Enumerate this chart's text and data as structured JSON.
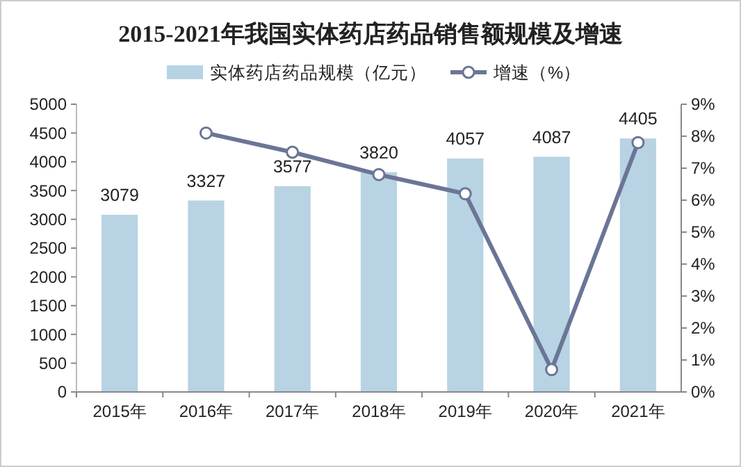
{
  "chart_data": {
    "type": "bar",
    "title": "2015-2021年我国实体药店药品销售额规模及增速",
    "categories": [
      "2015年",
      "2016年",
      "2017年",
      "2018年",
      "2019年",
      "2020年",
      "2021年"
    ],
    "series": [
      {
        "name": "实体药店药品规模（亿元）",
        "color": "#b8d3e3",
        "values": [
          3079,
          3327,
          3577,
          3820,
          4057,
          4087,
          4405
        ],
        "value_labels": [
          "3079",
          "3327",
          "3577",
          "3820",
          "4057",
          "4087",
          "4405"
        ]
      },
      {
        "name": "增速（%）",
        "type": "line",
        "axis": "y2",
        "color": "#6b7596",
        "marker": "circle",
        "values": [
          null,
          8.1,
          7.5,
          6.8,
          6.2,
          0.7,
          7.8
        ]
      }
    ],
    "ylim": [
      0,
      5000
    ],
    "yticks": [
      0,
      500,
      1000,
      1500,
      2000,
      2500,
      3000,
      3500,
      4000,
      4500,
      5000
    ],
    "y2lim": [
      0,
      9
    ],
    "y2ticks": [
      {
        "value": 0,
        "label": "0%"
      },
      {
        "value": 1,
        "label": "1%"
      },
      {
        "value": 2,
        "label": "2%"
      },
      {
        "value": 3,
        "label": "3%"
      },
      {
        "value": 4,
        "label": "4%"
      },
      {
        "value": 5,
        "label": "5%"
      },
      {
        "value": 6,
        "label": "6%"
      },
      {
        "value": 7,
        "label": "7%"
      },
      {
        "value": 8,
        "label": "8%"
      },
      {
        "value": 9,
        "label": "9%"
      }
    ],
    "legend": "top",
    "grid": false
  }
}
